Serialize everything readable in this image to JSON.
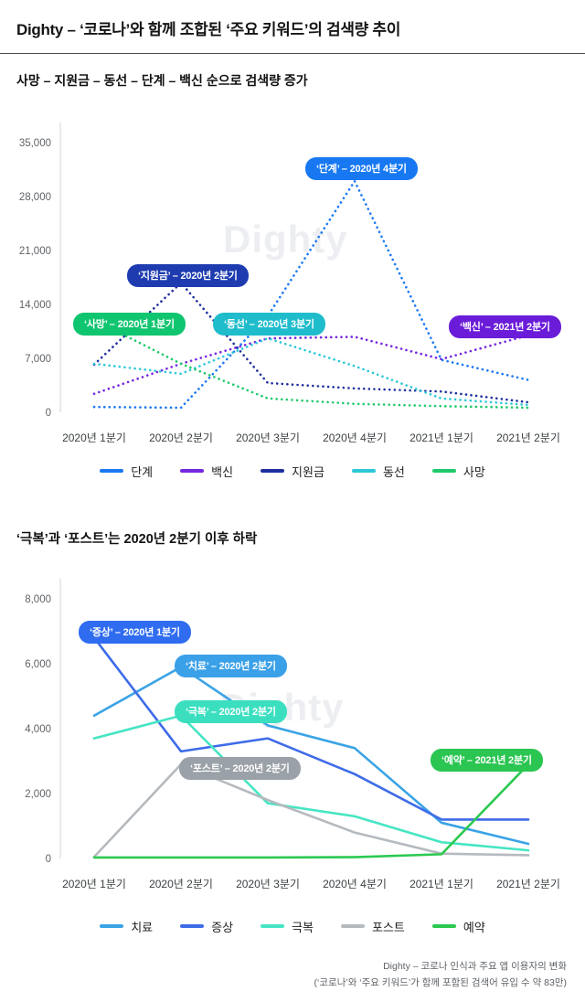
{
  "header": {
    "title": "Dighty – ‘코로나’와 함께 조합된 ‘주요 키워드’의 검색량 추이"
  },
  "section1": {
    "subtitle": "사망 – 지원금 – 동선 – 단계 – 백신 순으로 검색량 증가"
  },
  "section2": {
    "title": "‘극복’과 ‘포스트’는 2020년 2분기 이후 하락"
  },
  "watermark": "Dighty",
  "footer": {
    "line1": "Dighty – 코로나 인식과 주요 앱 이용자의 변화",
    "line2": "(‘코로나’와 ‘주요 키워드’가 함께 포함된 검색어 유입 수 약 83만)"
  },
  "chart_data": [
    {
      "type": "line",
      "title": "사망 – 지원금 – 동선 – 단계 – 백신 순으로 검색량 증가",
      "line_style": "dotted",
      "grid": false,
      "legend_position": "bottom",
      "categories": [
        "2020년 1분기",
        "2020년 2분기",
        "2020년 3분기",
        "2020년 4분기",
        "2021년 1분기",
        "2021년 2분기"
      ],
      "ylim": [
        0,
        35000
      ],
      "yticks": [
        0,
        7000,
        14000,
        21000,
        28000,
        35000
      ],
      "ytick_labels": [
        "0",
        "7,000",
        "14,000",
        "21,000",
        "28,000",
        "35,000"
      ],
      "series": [
        {
          "name": "단계",
          "color": "#1b78f2",
          "values": [
            700,
            600,
            12500,
            30000,
            6800,
            4200
          ]
        },
        {
          "name": "백신",
          "color": "#7527e0",
          "values": [
            2400,
            6300,
            9600,
            9800,
            6900,
            10000
          ]
        },
        {
          "name": "지원금",
          "color": "#1e2f9e",
          "values": [
            6200,
            16800,
            3800,
            3100,
            2700,
            1300
          ]
        },
        {
          "name": "동선",
          "color": "#2bc8d8",
          "values": [
            6300,
            5000,
            9600,
            6000,
            1800,
            950
          ]
        },
        {
          "name": "사망",
          "color": "#1fc96a",
          "values": [
            12000,
            6300,
            1800,
            1100,
            800,
            600
          ]
        }
      ],
      "annotations": [
        {
          "label": "‘사망’ – 2020년 1분기",
          "color": "#10c56f"
        },
        {
          "label": "‘지원금’ – 2020년 2분기",
          "color": "#1e3cb0"
        },
        {
          "label": "‘동선’ – 2020년 3분기",
          "color": "#1fbccb"
        },
        {
          "label": "‘단계’ – 2020년 4분기",
          "color": "#1778f2"
        },
        {
          "label": "‘백신’ – 2021년 2분기",
          "color": "#6b1cd9"
        }
      ]
    },
    {
      "type": "line",
      "title": "‘극복’과 ‘포스트’는 2020년 2분기 이후 하락",
      "line_style": "solid",
      "grid": false,
      "legend_position": "bottom",
      "categories": [
        "2020년 1분기",
        "2020년 2분기",
        "2020년 3분기",
        "2020년 4분기",
        "2021년 1분기",
        "2021년 2분기"
      ],
      "ylim": [
        0,
        8000
      ],
      "yticks": [
        0,
        2000,
        4000,
        6000,
        8000
      ],
      "ytick_labels": [
        "0",
        "2,000",
        "4,000",
        "6,000",
        "8,000"
      ],
      "series": [
        {
          "name": "치료",
          "color": "#3aa3e6",
          "values": [
            4400,
            5900,
            4100,
            3400,
            1100,
            450
          ]
        },
        {
          "name": "증상",
          "color": "#3e6ce8",
          "values": [
            6800,
            3300,
            3700,
            2600,
            1200,
            1200
          ]
        },
        {
          "name": "극복",
          "color": "#46e5c3",
          "values": [
            3700,
            4400,
            1700,
            1300,
            500,
            250
          ]
        },
        {
          "name": "포스트",
          "color": "#b5babf",
          "values": [
            50,
            2900,
            1800,
            800,
            150,
            100
          ]
        },
        {
          "name": "예약",
          "color": "#2bc94f",
          "values": [
            30,
            30,
            30,
            40,
            130,
            2900
          ]
        }
      ],
      "annotations": [
        {
          "label": "‘증상’ – 2020년 1분기",
          "color": "#2f6cf0"
        },
        {
          "label": "‘치료’ – 2020년 2분기",
          "color": "#3aa0e8"
        },
        {
          "label": "‘극복’ – 2020년 2분기",
          "color": "#3bdfc0"
        },
        {
          "label": "‘포스트’ – 2020년 2분기",
          "color": "#9ba1a8"
        },
        {
          "label": "‘예약’ – 2021년 2분기",
          "color": "#2bc552"
        }
      ]
    }
  ]
}
